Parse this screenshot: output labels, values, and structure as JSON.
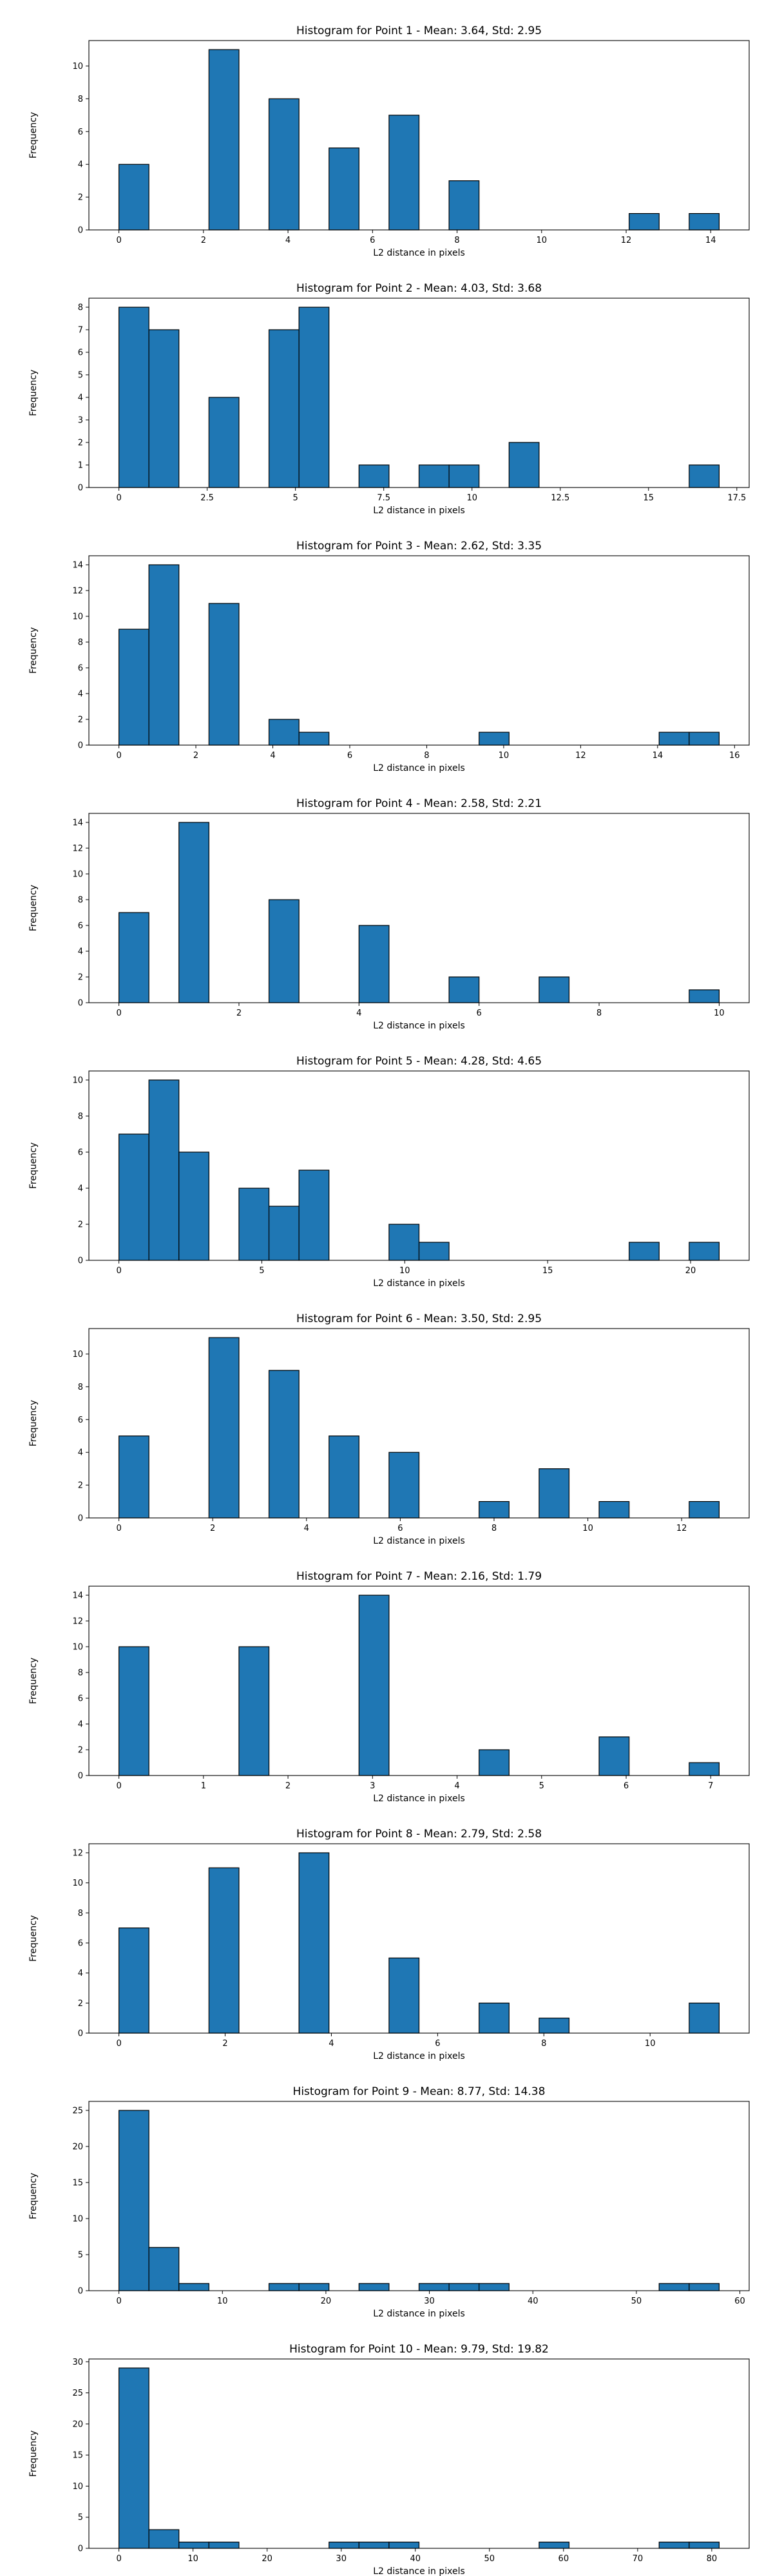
{
  "chart_data": [
    {
      "type": "bar",
      "title": "Histogram for Point 1 - Mean: 3.64, Std: 2.95",
      "xlabel": "L2 distance in pixels",
      "ylabel": "Frequency",
      "bin_range": [
        0.0,
        14.2
      ],
      "bins": 20,
      "counts": [
        4,
        0,
        0,
        11,
        0,
        8,
        0,
        5,
        0,
        7,
        0,
        3,
        0,
        0,
        0,
        0,
        0,
        1,
        0,
        1
      ],
      "xlim": [
        -0.71,
        14.91
      ],
      "ylim": [
        0,
        11.55
      ],
      "xticks": [
        0,
        2,
        4,
        6,
        8,
        10,
        12,
        14
      ],
      "yticks": [
        0,
        2,
        4,
        6,
        8,
        10
      ],
      "grid": false
    },
    {
      "type": "bar",
      "title": "Histogram for Point 2 - Mean: 4.03, Std: 3.68",
      "xlabel": "L2 distance in pixels",
      "ylabel": "Frequency",
      "bin_range": [
        0.0,
        17.0
      ],
      "bins": 20,
      "counts": [
        8,
        7,
        0,
        4,
        0,
        7,
        8,
        0,
        1,
        0,
        1,
        1,
        0,
        2,
        0,
        0,
        0,
        0,
        0,
        1
      ],
      "xlim": [
        -0.85,
        17.85
      ],
      "ylim": [
        0,
        8.4
      ],
      "xticks": [
        0.0,
        2.5,
        5.0,
        7.5,
        10.0,
        12.5,
        15.0,
        17.5
      ],
      "yticks": [
        0,
        1,
        2,
        3,
        4,
        5,
        6,
        7,
        8
      ],
      "grid": false
    },
    {
      "type": "bar",
      "title": "Histogram for Point 3 - Mean: 2.62, Std: 3.35",
      "xlabel": "L2 distance in pixels",
      "ylabel": "Frequency",
      "bin_range": [
        0.0,
        15.6
      ],
      "bins": 20,
      "counts": [
        9,
        14,
        0,
        11,
        0,
        2,
        1,
        0,
        0,
        0,
        0,
        0,
        1,
        0,
        0,
        0,
        0,
        0,
        1,
        1
      ],
      "xlim": [
        -0.78,
        16.38
      ],
      "ylim": [
        0,
        14.7
      ],
      "xticks": [
        0,
        2,
        4,
        6,
        8,
        10,
        12,
        14,
        16
      ],
      "yticks": [
        0,
        2,
        4,
        6,
        8,
        10,
        12,
        14
      ],
      "grid": false
    },
    {
      "type": "bar",
      "title": "Histogram for Point 4 - Mean: 2.58, Std: 2.21",
      "xlabel": "L2 distance in pixels",
      "ylabel": "Frequency",
      "bin_range": [
        0.0,
        10.0
      ],
      "bins": 20,
      "counts": [
        7,
        0,
        14,
        0,
        0,
        8,
        0,
        0,
        6,
        0,
        0,
        2,
        0,
        0,
        2,
        0,
        0,
        0,
        0,
        1
      ],
      "xlim": [
        -0.5,
        10.5
      ],
      "ylim": [
        0,
        14.7
      ],
      "xticks": [
        0,
        2,
        4,
        6,
        8,
        10
      ],
      "yticks": [
        0,
        2,
        4,
        6,
        8,
        10,
        12,
        14
      ],
      "grid": false
    },
    {
      "type": "bar",
      "title": "Histogram for Point 5 - Mean: 4.28, Std: 4.65",
      "xlabel": "L2 distance in pixels",
      "ylabel": "Frequency",
      "bin_range": [
        0.0,
        21.0
      ],
      "bins": 20,
      "counts": [
        7,
        10,
        6,
        0,
        4,
        3,
        5,
        0,
        0,
        2,
        1,
        0,
        0,
        0,
        0,
        0,
        0,
        1,
        0,
        1
      ],
      "xlim": [
        -1.05,
        22.05
      ],
      "ylim": [
        0,
        10.5
      ],
      "xticks": [
        0,
        5,
        10,
        15,
        20
      ],
      "yticks": [
        0,
        2,
        4,
        6,
        8,
        10
      ],
      "grid": false
    },
    {
      "type": "bar",
      "title": "Histogram for Point 6 - Mean: 3.50, Std: 2.95",
      "xlabel": "L2 distance in pixels",
      "ylabel": "Frequency",
      "bin_range": [
        0.0,
        12.8
      ],
      "bins": 20,
      "counts": [
        5,
        0,
        0,
        11,
        0,
        9,
        0,
        5,
        0,
        4,
        0,
        0,
        1,
        0,
        3,
        0,
        1,
        0,
        0,
        1
      ],
      "xlim": [
        -0.64,
        13.44
      ],
      "ylim": [
        0,
        11.55
      ],
      "xticks": [
        0,
        2,
        4,
        6,
        8,
        10,
        12
      ],
      "yticks": [
        0,
        2,
        4,
        6,
        8,
        10
      ],
      "grid": false
    },
    {
      "type": "bar",
      "title": "Histogram for Point 7 - Mean: 2.16, Std: 1.79",
      "xlabel": "L2 distance in pixels",
      "ylabel": "Frequency",
      "bin_range": [
        0.0,
        7.1
      ],
      "bins": 20,
      "counts": [
        10,
        0,
        0,
        0,
        10,
        0,
        0,
        0,
        14,
        0,
        0,
        0,
        2,
        0,
        0,
        0,
        3,
        0,
        0,
        1
      ],
      "xlim": [
        -0.355,
        7.455
      ],
      "ylim": [
        0,
        14.7
      ],
      "xticks": [
        0,
        1,
        2,
        3,
        4,
        5,
        6,
        7
      ],
      "yticks": [
        0,
        2,
        4,
        6,
        8,
        10,
        12,
        14
      ],
      "grid": false
    },
    {
      "type": "bar",
      "title": "Histogram for Point 8 - Mean: 2.79, Std: 2.58",
      "xlabel": "L2 distance in pixels",
      "ylabel": "Frequency",
      "bin_range": [
        0.0,
        11.3
      ],
      "bins": 20,
      "counts": [
        7,
        0,
        0,
        11,
        0,
        0,
        12,
        0,
        0,
        5,
        0,
        0,
        2,
        0,
        1,
        0,
        0,
        0,
        0,
        2
      ],
      "xlim": [
        -0.565,
        11.865
      ],
      "ylim": [
        0,
        12.6
      ],
      "xticks": [
        0,
        2,
        4,
        6,
        8,
        10
      ],
      "yticks": [
        0,
        2,
        4,
        6,
        8,
        10,
        12
      ],
      "grid": false
    },
    {
      "type": "bar",
      "title": "Histogram for Point 9 - Mean: 8.77, Std: 14.38",
      "xlabel": "L2 distance in pixels",
      "ylabel": "Frequency",
      "bin_range": [
        0.0,
        58.0
      ],
      "bins": 20,
      "counts": [
        25,
        6,
        1,
        0,
        0,
        1,
        1,
        0,
        1,
        0,
        1,
        1,
        1,
        0,
        0,
        0,
        0,
        0,
        1,
        1
      ],
      "xlim": [
        -2.9,
        60.9
      ],
      "ylim": [
        0,
        26.25
      ],
      "xticks": [
        0,
        10,
        20,
        30,
        40,
        50,
        60
      ],
      "yticks": [
        0,
        5,
        10,
        15,
        20,
        25
      ],
      "grid": false
    },
    {
      "type": "bar",
      "title": "Histogram for Point 10 - Mean: 9.79, Std: 19.82",
      "xlabel": "L2 distance in pixels",
      "ylabel": "Frequency",
      "bin_range": [
        0.0,
        81.0
      ],
      "bins": 20,
      "counts": [
        29,
        3,
        1,
        1,
        0,
        0,
        0,
        1,
        1,
        1,
        0,
        0,
        0,
        0,
        1,
        0,
        0,
        0,
        1,
        1
      ],
      "xlim": [
        -4.05,
        85.05
      ],
      "ylim": [
        0,
        30.45
      ],
      "xticks": [
        0,
        10,
        20,
        30,
        40,
        50,
        60,
        70,
        80
      ],
      "yticks": [
        0,
        5,
        10,
        15,
        20,
        25,
        30
      ],
      "grid": false
    }
  ],
  "style": {
    "bar_fill": "#1f77b4",
    "bar_edge": "#000000",
    "axis_color": "#000000",
    "background": "#ffffff"
  }
}
